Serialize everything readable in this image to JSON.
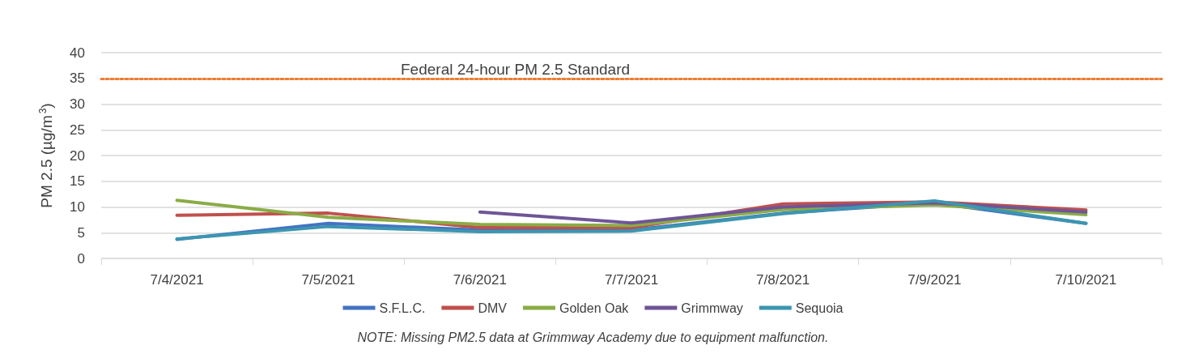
{
  "chart_data": {
    "type": "line",
    "ylabel": "PM 2.5 (µg/m$^{3}$)",
    "categories": [
      "7/4/2021",
      "7/5/2021",
      "7/6/2021",
      "7/7/2021",
      "7/8/2021",
      "7/9/2021",
      "7/10/2021"
    ],
    "series": [
      {
        "name": "S.F.L.C.",
        "color": "#4472c4",
        "values": [
          3.7,
          6.8,
          5.5,
          5.5,
          8.8,
          10.8,
          6.8
        ]
      },
      {
        "name": "DMV",
        "color": "#c0504d",
        "values": [
          8.4,
          8.8,
          6.0,
          6.0,
          10.6,
          11.0,
          9.4
        ]
      },
      {
        "name": "Golden Oak",
        "color": "#8aac46",
        "values": [
          11.3,
          8.0,
          6.6,
          6.4,
          9.5,
          10.4,
          8.5
        ]
      },
      {
        "name": "Grimmway",
        "color": "#6f5596",
        "values": [
          null,
          null,
          9.0,
          6.9,
          10.0,
          10.8,
          9.0
        ]
      },
      {
        "name": "Sequoia",
        "color": "#3c96b0",
        "values": [
          3.8,
          6.2,
          5.2,
          5.3,
          8.7,
          11.2,
          6.8
        ]
      }
    ],
    "ylim": [
      0,
      40
    ],
    "yticks": [
      0,
      5,
      10,
      15,
      20,
      25,
      30,
      35,
      40
    ],
    "grid": "y",
    "legend": "bottom",
    "marker": "none",
    "line_style": "solid",
    "ref_lines": [
      {
        "axis": "y",
        "value": 35,
        "label": "Federal 24-hour PM 2.5 Standard",
        "color": "#ed7d31",
        "line_style": "dotted"
      }
    ],
    "annotations": [
      "NOTE: Missing PM2.5 data at Grimmway Academy due to equipment malfunction."
    ]
  }
}
